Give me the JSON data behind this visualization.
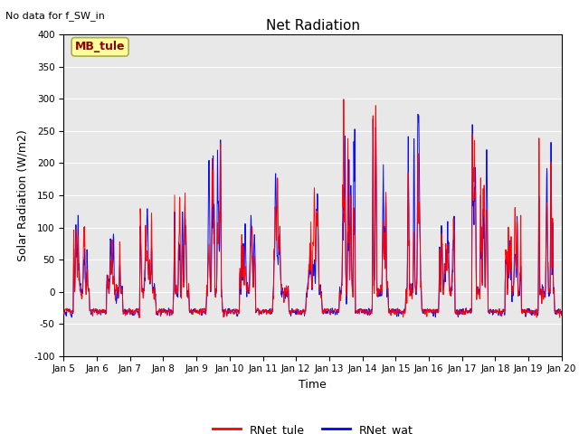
{
  "title": "Net Radiation",
  "xlabel": "Time",
  "ylabel": "Solar Radiation (W/m2)",
  "text_no_data": "No data for f_SW_in",
  "legend_label1": "RNet_tule",
  "legend_label2": "RNet_wat",
  "legend_box_label": "MB_tule",
  "ylim": [
    -100,
    400
  ],
  "color_tule": "#ff0000",
  "color_wat": "#0000ff",
  "background_color": "#e8e8e8",
  "xtick_labels": [
    "Jan 5",
    "Jan 6",
    "Jan 7",
    "Jan 8",
    "Jan 9",
    "Jan 10",
    "Jan 11",
    "Jan 12",
    "Jan 13",
    "Jan 14",
    "Jan 15",
    "Jan 16",
    "Jan 17",
    "Jan 18",
    "Jan 19",
    "Jan 20"
  ],
  "ytick_labels": [
    -100,
    -50,
    0,
    50,
    100,
    150,
    200,
    250,
    300,
    350,
    400
  ],
  "n_points": 2160,
  "seed": 7
}
